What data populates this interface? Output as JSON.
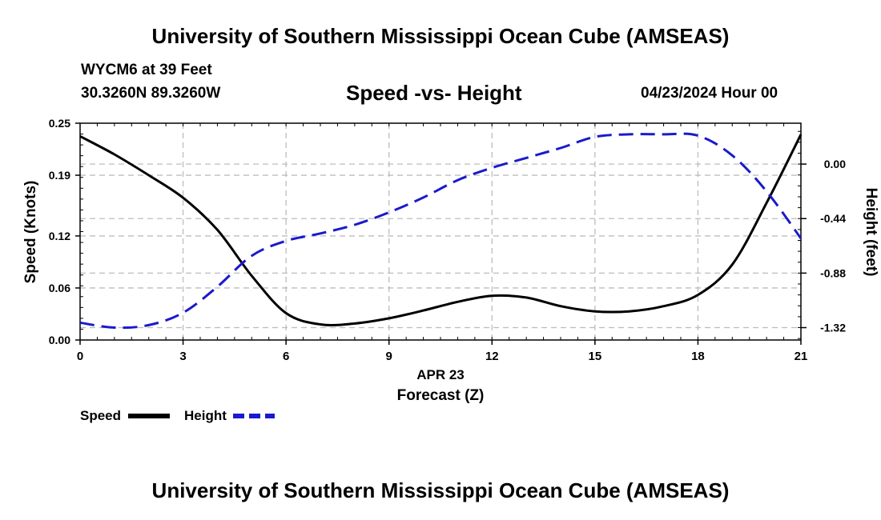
{
  "header": {
    "title": "University of Southern Mississippi Ocean Cube (AMSEAS)",
    "station": "WYCM6 at 39 Feet",
    "coords": "30.3260N  89.3260W",
    "subtitle": "Speed -vs- Height",
    "datetime": "04/23/2024 Hour 00"
  },
  "footer": {
    "title": "University of Southern Mississippi Ocean Cube (AMSEAS)"
  },
  "chart_data": {
    "type": "line",
    "title": "Speed -vs- Height",
    "xlabel": "Forecast (Z)",
    "xsublabel": "APR 23",
    "ylabel": "Speed (Knots)",
    "y2label": "Height (feet)",
    "xlim": [
      0,
      21
    ],
    "ylim": [
      0,
      0.25
    ],
    "y2lim": [
      -1.42,
      0.33
    ],
    "xticks": [
      "0",
      "3",
      "6",
      "9",
      "12",
      "15",
      "18",
      "21"
    ],
    "yticks": [
      "0.00",
      "0.06",
      "0.12",
      "0.19",
      "0.25"
    ],
    "y2ticks": [
      "0.00",
      "-0.44",
      "-0.88",
      "-1.32"
    ],
    "grid": true,
    "legend_position": "bottom-left",
    "colors": {
      "speed": "#000000",
      "height": "#1a1acc",
      "grid": "#bdbdbd"
    },
    "series": [
      {
        "name": "Speed",
        "axis": "left",
        "style": "solid",
        "x": [
          0,
          1,
          2,
          3,
          4,
          5,
          6,
          7,
          8,
          9,
          10,
          11,
          12,
          13,
          14,
          15,
          16,
          17,
          18,
          19,
          20,
          21
        ],
        "values": [
          0.235,
          0.214,
          0.19,
          0.164,
          0.127,
          0.074,
          0.031,
          0.018,
          0.019,
          0.025,
          0.034,
          0.044,
          0.051,
          0.049,
          0.039,
          0.033,
          0.033,
          0.039,
          0.052,
          0.087,
          0.158,
          0.237
        ]
      },
      {
        "name": "Height",
        "axis": "right",
        "style": "dashed",
        "x": [
          0,
          1,
          2,
          3,
          4,
          5,
          6,
          7,
          8,
          9,
          10,
          11,
          12,
          13,
          14,
          15,
          16,
          17,
          18,
          19,
          20,
          21
        ],
        "values": [
          -1.28,
          -1.32,
          -1.3,
          -1.2,
          -0.99,
          -0.74,
          -0.62,
          -0.56,
          -0.49,
          -0.39,
          -0.27,
          -0.13,
          -0.03,
          0.05,
          0.13,
          0.22,
          0.24,
          0.24,
          0.23,
          0.07,
          -0.22,
          -0.6
        ]
      }
    ]
  }
}
